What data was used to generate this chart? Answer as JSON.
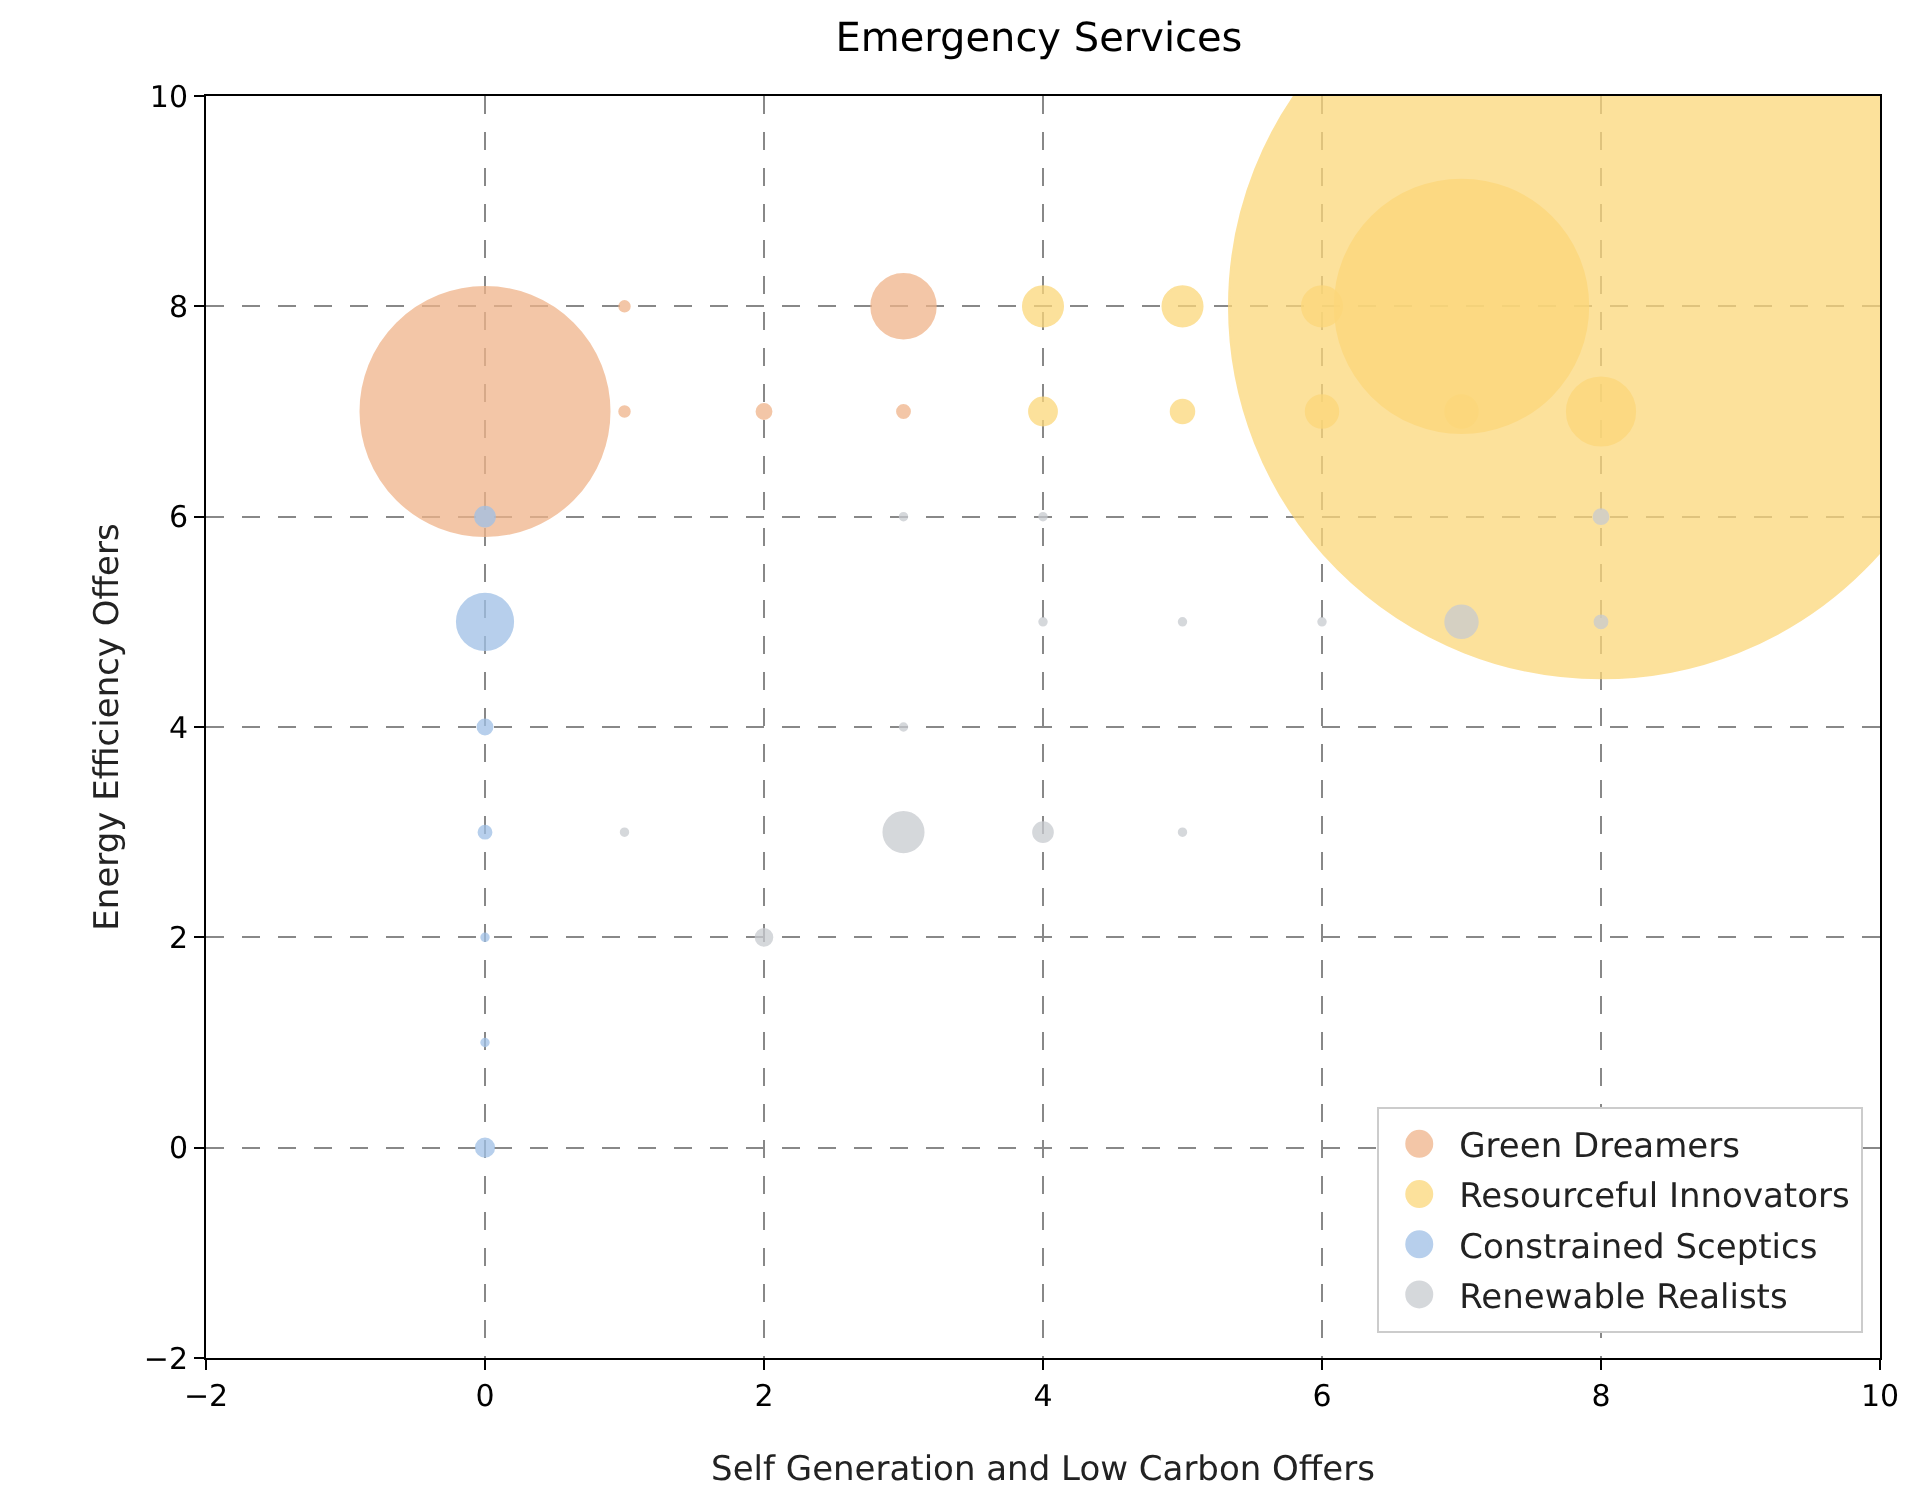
{
  "chart_data": {
    "type": "bubble",
    "title": "Emergency Services",
    "xlabel": "Self Generation and Low Carbon Offers",
    "ylabel": "Energy Efficiency Offers",
    "xlim": [
      -2,
      10
    ],
    "xticks": [
      {
        "value": -2,
        "label": "−2"
      },
      0,
      2,
      4,
      6,
      8,
      10
    ],
    "ylim": [
      -2,
      10
    ],
    "yticks": [
      {
        "value": -2,
        "label": "−2"
      },
      0,
      2,
      4,
      6,
      8,
      10
    ],
    "grid": true,
    "legend": "bottom right",
    "marker": "circle",
    "series": [
      {
        "name": "Green Dreamers",
        "color": "#f0b48a",
        "x": [
          0,
          1,
          1,
          2,
          3,
          3
        ],
        "values": [
          7,
          8,
          7,
          7,
          7,
          8
        ],
        "sizes": [
          0.112,
          0.0002,
          0.0002,
          0.0004,
          0.0003,
          0.0075
        ]
      },
      {
        "name": "Resourceful Innovators",
        "color": "#fcd77a",
        "x": [
          4,
          4,
          5,
          5,
          6,
          6,
          7,
          7,
          8,
          8
        ],
        "values": [
          8,
          7,
          8,
          7,
          8,
          7,
          8,
          7,
          7,
          8
        ],
        "sizes": [
          0.0029,
          0.0014,
          0.0029,
          0.001,
          0.0029,
          0.0019,
          0.116,
          0.0019,
          0.0084,
          1
        ]
      },
      {
        "name": "Constrained Sceptics",
        "color": "#9fc0e6",
        "x": [
          0,
          0,
          0,
          0,
          0,
          0,
          0
        ],
        "values": [
          6,
          5,
          4,
          3,
          2,
          1,
          0
        ],
        "sizes": [
          0.0007,
          0.0057,
          0.0004,
          0.0003,
          0.0001,
          0.0001,
          0.0006
        ]
      },
      {
        "name": "Renewable Realists",
        "color": "#c8cbd0",
        "x": [
          3,
          4,
          5,
          1,
          2,
          7,
          8,
          8,
          5,
          4,
          3,
          6,
          3,
          4
        ],
        "values": [
          3,
          3,
          3,
          3,
          2,
          5,
          5,
          6,
          5,
          5,
          4,
          5,
          6,
          6
        ],
        "sizes": [
          0.0029,
          0.0007,
          0.0001,
          0.0001,
          0.0005,
          0.0019,
          0.0003,
          0.0004,
          0.0001,
          0.0001,
          0.0001,
          0.0001,
          0.0001,
          0.0001
        ]
      }
    ]
  }
}
